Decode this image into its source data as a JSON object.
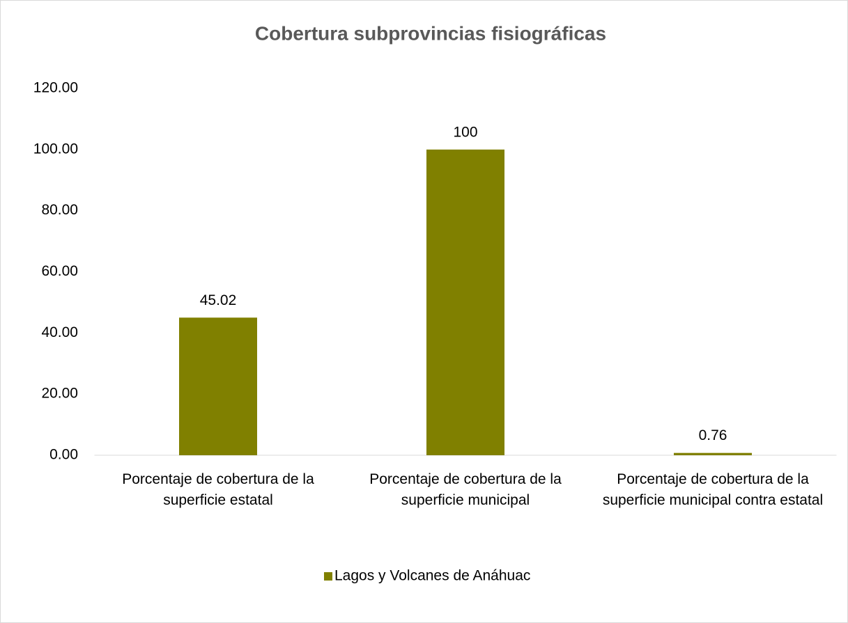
{
  "chart_data": {
    "type": "bar",
    "title": "Cobertura subprovincias fisiográficas",
    "categories": [
      "Porcentaje de cobertura de la superficie estatal",
      "Porcentaje de cobertura de la superficie municipal",
      "Porcentaje de cobertura de la superficie municipal contra estatal"
    ],
    "series": [
      {
        "name": "Lagos y Volcanes de Anáhuac",
        "color": "#808000",
        "values": [
          45.02,
          100,
          0.76
        ]
      }
    ],
    "ylim": [
      0,
      120
    ],
    "yticks": [
      {
        "value": 0,
        "label": "0.00"
      },
      {
        "value": 20,
        "label": "20.00"
      },
      {
        "value": 40,
        "label": "40.00"
      },
      {
        "value": 60,
        "label": "60.00"
      },
      {
        "value": 80,
        "label": "80.00"
      },
      {
        "value": 100,
        "label": "100.00"
      },
      {
        "value": 120,
        "label": "120.00"
      }
    ],
    "grid": false,
    "legend": "bottom"
  }
}
